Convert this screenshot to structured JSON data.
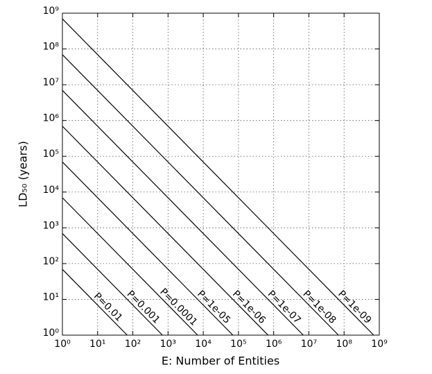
{
  "chart_data": {
    "type": "line",
    "xlabel": "E: Number of Entities",
    "ylabel": "LD₅₀ (years)",
    "xlog": true,
    "ylog": true,
    "grid": true,
    "color": "#000000",
    "xlim": [
      1,
      1000000000
    ],
    "ylim": [
      1,
      1000000000
    ],
    "xticks": [
      {
        "value": 1,
        "label": "10⁰"
      },
      {
        "value": 10,
        "label": "10¹"
      },
      {
        "value": 100,
        "label": "10²"
      },
      {
        "value": 1000,
        "label": "10³"
      },
      {
        "value": 10000,
        "label": "10⁴"
      },
      {
        "value": 100000,
        "label": "10⁵"
      },
      {
        "value": 1000000,
        "label": "10⁶"
      },
      {
        "value": 10000000,
        "label": "10⁷"
      },
      {
        "value": 100000000,
        "label": "10⁸"
      },
      {
        "value": 1000000000,
        "label": "10⁹"
      }
    ],
    "yticks": [
      {
        "value": 1,
        "label": "10⁰"
      },
      {
        "value": 10,
        "label": "10¹"
      },
      {
        "value": 100,
        "label": "10²"
      },
      {
        "value": 1000,
        "label": "10³"
      },
      {
        "value": 10000,
        "label": "10⁴"
      },
      {
        "value": 100000,
        "label": "10⁵"
      },
      {
        "value": 1000000,
        "label": "10⁶"
      },
      {
        "value": 10000000,
        "label": "10⁷"
      },
      {
        "value": 100000000,
        "label": "10⁸"
      },
      {
        "value": 1000000000,
        "label": "10⁹"
      }
    ],
    "series": [
      {
        "name": "P=0.01",
        "x": [
          1,
          69
        ],
        "values": [
          69,
          1
        ]
      },
      {
        "name": "P=0.001",
        "x": [
          1,
          693
        ],
        "values": [
          693,
          1
        ]
      },
      {
        "name": "P=0.0001",
        "x": [
          1,
          6930
        ],
        "values": [
          6930,
          1
        ]
      },
      {
        "name": "P=1e-05",
        "x": [
          1,
          69300
        ],
        "values": [
          69300,
          1
        ]
      },
      {
        "name": "P=1e-06",
        "x": [
          1,
          693000
        ],
        "values": [
          693000,
          1
        ]
      },
      {
        "name": "P=1e-07",
        "x": [
          1,
          6930000
        ],
        "values": [
          6930000,
          1
        ]
      },
      {
        "name": "P=1e-08",
        "x": [
          1,
          69300000
        ],
        "values": [
          69300000,
          1
        ]
      },
      {
        "name": "P=1e-09",
        "x": [
          1,
          693000000
        ],
        "values": [
          693000000,
          1
        ]
      }
    ]
  }
}
